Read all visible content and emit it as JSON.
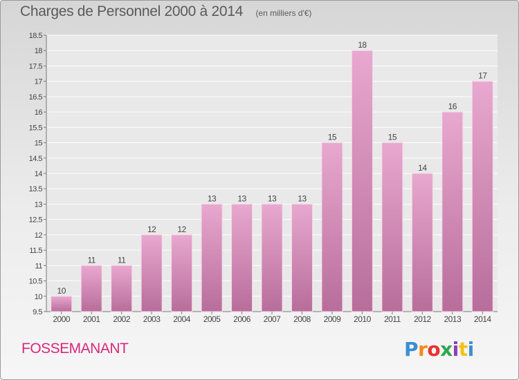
{
  "header": {
    "title": "Charges de Personnel 2000 à 2014",
    "subtitle": "(en milliers d'€)"
  },
  "footer": {
    "place": "FOSSEMANANT",
    "brand": "Proxiti",
    "brand_colors": [
      "#3a8fd4",
      "#f08a1c",
      "#e8322e",
      "#2fa84f",
      "#8a3fb3",
      "#f2c21a",
      "#3a8fd4"
    ]
  },
  "colors": {
    "bar_top": "#e8a8cf",
    "bar_bottom": "#b86d9b",
    "bar_edge": "#f6d6e9",
    "accent": "#d4297e"
  },
  "chart_data": {
    "type": "bar",
    "categories": [
      "2000",
      "2001",
      "2002",
      "2003",
      "2004",
      "2005",
      "2006",
      "2007",
      "2008",
      "2009",
      "2010",
      "2011",
      "2012",
      "2013",
      "2014"
    ],
    "values": [
      10,
      11,
      11,
      12,
      12,
      13,
      13,
      13,
      13,
      15,
      18,
      15,
      14,
      16,
      17
    ],
    "data_labels": [
      "10",
      "11",
      "11",
      "12",
      "12",
      "13",
      "13",
      "13",
      "13",
      "15",
      "18",
      "15",
      "14",
      "16",
      "17"
    ],
    "ylim": [
      9.5,
      18.5
    ],
    "yticks": [
      9.5,
      10,
      10.5,
      11,
      11.5,
      12,
      12.5,
      13,
      13.5,
      14,
      14.5,
      15,
      15.5,
      16,
      16.5,
      17,
      17.5,
      18,
      18.5
    ],
    "ytick_labels": [
      "9.5",
      "10",
      "10.5",
      "11",
      "11.5",
      "12",
      "12.5",
      "13",
      "13.5",
      "14",
      "14.5",
      "15",
      "15.5",
      "16",
      "16.5",
      "17",
      "17.5",
      "18",
      "18.5"
    ],
    "grid": true,
    "xlabel": "",
    "ylabel": ""
  }
}
